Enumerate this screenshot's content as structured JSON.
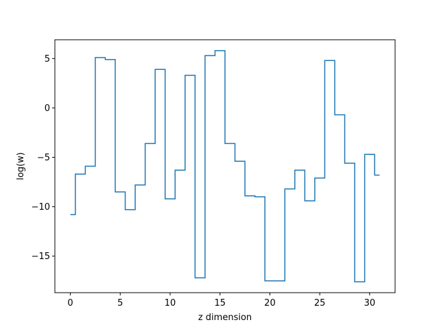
{
  "chart_data": {
    "type": "line",
    "step": "mid",
    "title": "",
    "xlabel": "z dimension",
    "ylabel": "log(w)",
    "xlim": [
      -1.55,
      32.55
    ],
    "ylim": [
      -18.7,
      6.9
    ],
    "xticks": [
      0,
      5,
      10,
      15,
      20,
      25,
      30
    ],
    "yticks": [
      5,
      0,
      -5,
      -10,
      -15
    ],
    "ytick_labels": [
      "5",
      "0",
      "−5",
      "−10",
      "−15"
    ],
    "grid": false,
    "color": "#1f77b4",
    "series": [
      {
        "x": [
          0,
          1,
          2,
          3,
          4,
          5,
          6,
          7,
          8,
          9,
          10,
          11,
          12,
          13,
          14,
          15,
          16,
          17,
          18,
          19,
          20,
          21,
          22,
          23,
          24,
          25,
          26,
          27,
          28,
          29,
          30,
          31
        ],
        "values": [
          -10.8,
          -6.7,
          -5.9,
          5.1,
          4.9,
          -8.5,
          -10.3,
          -7.8,
          -3.6,
          3.9,
          -9.2,
          -6.3,
          3.3,
          -17.2,
          5.3,
          5.8,
          -3.6,
          -5.4,
          -8.9,
          -9.0,
          -17.5,
          -17.5,
          -8.2,
          -6.3,
          -9.4,
          -7.1,
          4.8,
          -0.7,
          -5.6,
          -17.6,
          -4.7,
          -6.8
        ]
      }
    ]
  }
}
